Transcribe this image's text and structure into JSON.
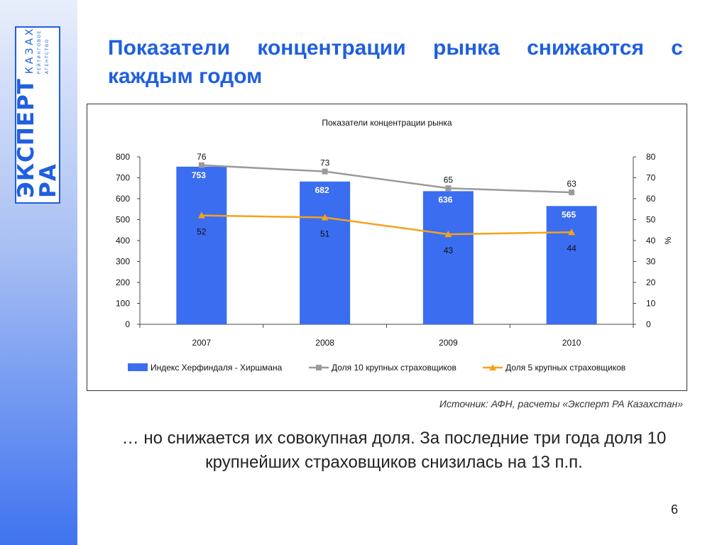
{
  "logo": {
    "main": "ЭКСПЕРТ РА",
    "country": "КАЗАХСТАН",
    "sub_1": "РЕЙТИНГОВОЕ",
    "sub_2": "АГЕНТСТВО"
  },
  "slide": {
    "title": "Показатели концентрации рынка снижаются с каждым годом",
    "source": "Источник: АФН, расчеты «Эксперт РА Казахстан»",
    "bottom_text": "… но снижается их совокупная доля. За последние три года доля 10 крупнейших страховщиков снизилась на 13 п.п.",
    "page_number": "6"
  },
  "colors": {
    "accent": "#1f5fe0",
    "bar": "#3a6df0",
    "line_top10": "#9a9a9a",
    "line_top5": "#f5a21b"
  },
  "chart_data": {
    "type": "bar",
    "title": "Показатели концентрации рынка",
    "categories": [
      "2007",
      "2008",
      "2009",
      "2010"
    ],
    "ylim": [
      0,
      800
    ],
    "yticks": [
      0,
      100,
      200,
      300,
      400,
      500,
      600,
      700,
      800
    ],
    "y2lim": [
      0,
      80
    ],
    "y2ticks": [
      0,
      10,
      20,
      30,
      40,
      50,
      60,
      70,
      80
    ],
    "y2label": "%",
    "legend_position": "bottom",
    "grid": false,
    "series": [
      {
        "name": "Индекс Херфиндаля - Хиршмана",
        "type": "bar",
        "axis": "left",
        "values": [
          753,
          682,
          636,
          565
        ],
        "color": "#3a6df0"
      },
      {
        "name": "Доля 10 крупных страховщиков",
        "type": "line",
        "axis": "right",
        "marker": "square",
        "values": [
          76,
          73,
          65,
          63
        ],
        "color": "#9a9a9a"
      },
      {
        "name": "Доля 5 крупных страховщиков",
        "type": "line",
        "axis": "right",
        "marker": "triangle",
        "values": [
          52,
          51,
          43,
          44
        ],
        "color": "#f5a21b"
      }
    ]
  }
}
